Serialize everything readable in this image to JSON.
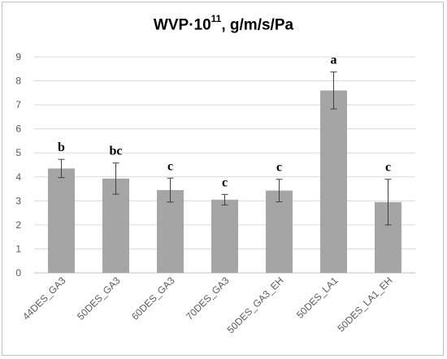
{
  "chart_data": {
    "type": "bar",
    "title": {
      "main": "WVP·10",
      "exponent": "11",
      "unit": ", g/m/s/Pa"
    },
    "categories": [
      "44DES_GA3",
      "50DES_GA3",
      "60DES_GA3",
      "70DES_GA3",
      "50DES_GA3_EH",
      "50DES_LA1",
      "50DES_LA1_EH"
    ],
    "values": [
      4.35,
      3.93,
      3.45,
      3.05,
      3.43,
      7.6,
      2.95
    ],
    "error": [
      0.38,
      0.65,
      0.5,
      0.22,
      0.47,
      0.77,
      0.95
    ],
    "significance": [
      "b",
      "bc",
      "c",
      "c",
      "c",
      "a",
      "c"
    ],
    "ylim": [
      0,
      9
    ],
    "yticks": [
      "0",
      "1",
      "2",
      "3",
      "4",
      "5",
      "6",
      "7",
      "8",
      "9"
    ],
    "grid": true,
    "bar_color": "#a5a5a5",
    "grid_color": "#d9d9d9",
    "error_color": "#404040"
  }
}
